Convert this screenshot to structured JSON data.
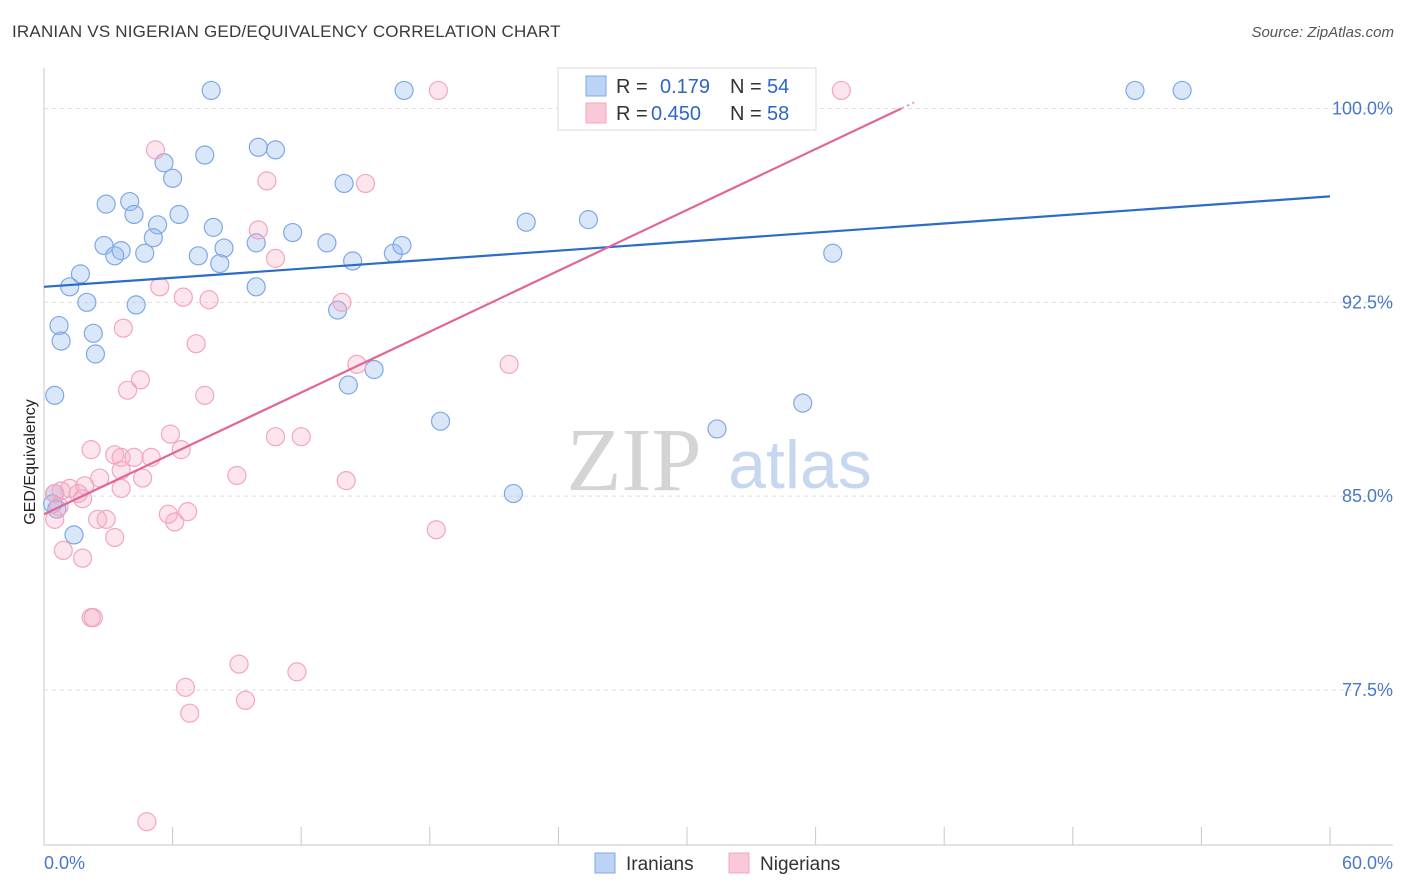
{
  "header": {
    "title": "IRANIAN VS NIGERIAN GED/EQUIVALENCY CORRELATION CHART",
    "source": "Source: ZipAtlas.com"
  },
  "watermark": {
    "zip": "ZIP",
    "atlas": "atlas"
  },
  "chart_data": {
    "type": "scatter",
    "ylabel": "GED/Equivalency",
    "xlim": [
      0,
      60
    ],
    "ylim": [
      71.5,
      101.8
    ],
    "x_tick_labels": [
      "0.0%",
      "60.0%"
    ],
    "y_ticks": [
      {
        "value": 100.0,
        "label": "100.0%"
      },
      {
        "value": 92.5,
        "label": "92.5%"
      },
      {
        "value": 85.0,
        "label": "85.0%"
      },
      {
        "value": 77.5,
        "label": "77.5%"
      }
    ],
    "grid": true,
    "legend_position": "top-center",
    "series": [
      {
        "name": "Iranians",
        "color": "#7fa8e6",
        "line_color": "#2b6cc7",
        "R": "0.179",
        "N": "54",
        "r_label": "R =",
        "n_label": "N =",
        "trend": [
          [
            0,
            93.1
          ],
          [
            60,
            96.6
          ]
        ],
        "points": [
          [
            7.8,
            100.7
          ],
          [
            16.8,
            100.7
          ],
          [
            50.9,
            100.7
          ],
          [
            53.1,
            100.7
          ],
          [
            10,
            98.5
          ],
          [
            10.8,
            98.4
          ],
          [
            7.5,
            98.2
          ],
          [
            5.6,
            97.9
          ],
          [
            6,
            97.3
          ],
          [
            14,
            97.1
          ],
          [
            4,
            96.4
          ],
          [
            2.9,
            96.3
          ],
          [
            4.2,
            95.9
          ],
          [
            6.3,
            95.9
          ],
          [
            5.3,
            95.5
          ],
          [
            11.6,
            95.2
          ],
          [
            7.9,
            95.4
          ],
          [
            22.5,
            95.6
          ],
          [
            25.4,
            95.7
          ],
          [
            5.1,
            95
          ],
          [
            9.9,
            94.8
          ],
          [
            8.4,
            94.6
          ],
          [
            13.2,
            94.8
          ],
          [
            7.2,
            94.3
          ],
          [
            3.6,
            94.5
          ],
          [
            14.4,
            94.1
          ],
          [
            16.3,
            94.4
          ],
          [
            16.7,
            94.7
          ],
          [
            2.8,
            94.7
          ],
          [
            3.3,
            94.3
          ],
          [
            4.7,
            94.4
          ],
          [
            8.2,
            94
          ],
          [
            1.7,
            93.6
          ],
          [
            9.9,
            93.1
          ],
          [
            1.2,
            93.1
          ],
          [
            2,
            92.5
          ],
          [
            4.3,
            92.4
          ],
          [
            13.7,
            92.2
          ],
          [
            2.3,
            91.3
          ],
          [
            0.7,
            91.6
          ],
          [
            0.8,
            91
          ],
          [
            2.4,
            90.5
          ],
          [
            15.4,
            89.9
          ],
          [
            14.2,
            89.3
          ],
          [
            0.5,
            88.9
          ],
          [
            18.5,
            87.9
          ],
          [
            31.4,
            87.6
          ],
          [
            35.4,
            88.6
          ],
          [
            36.8,
            94.4
          ],
          [
            21.9,
            85.1
          ],
          [
            1.4,
            83.5
          ],
          [
            0.5,
            85.1
          ],
          [
            0.4,
            84.7
          ],
          [
            0.6,
            84.5
          ]
        ]
      },
      {
        "name": "Nigerians",
        "color": "#f2a6bf",
        "line_color": "#e0669a",
        "R": "0.450",
        "N": "58",
        "r_label": "R =",
        "n_label": "N =",
        "trend": [
          [
            0,
            84.3
          ],
          [
            40,
            100
          ]
        ],
        "points": [
          [
            18.4,
            100.7
          ],
          [
            37.2,
            100.7
          ],
          [
            5.2,
            98.4
          ],
          [
            10.4,
            97.2
          ],
          [
            15,
            97.1
          ],
          [
            10,
            95.3
          ],
          [
            10.8,
            94.2
          ],
          [
            5.4,
            93.1
          ],
          [
            6.5,
            92.7
          ],
          [
            7.7,
            92.6
          ],
          [
            13.9,
            92.5
          ],
          [
            3.7,
            91.5
          ],
          [
            7.1,
            90.9
          ],
          [
            14.6,
            90.1
          ],
          [
            21.7,
            90.1
          ],
          [
            4.5,
            89.5
          ],
          [
            3.9,
            89.1
          ],
          [
            7.5,
            88.9
          ],
          [
            5.9,
            87.4
          ],
          [
            10.8,
            87.3
          ],
          [
            12,
            87.3
          ],
          [
            2.2,
            86.8
          ],
          [
            6.4,
            86.8
          ],
          [
            3.3,
            86.6
          ],
          [
            3.6,
            86.5
          ],
          [
            4.2,
            86.5
          ],
          [
            5,
            86.5
          ],
          [
            3.6,
            86.0
          ],
          [
            4.6,
            85.7
          ],
          [
            9,
            85.8
          ],
          [
            2.6,
            85.7
          ],
          [
            1.9,
            85.4
          ],
          [
            3.6,
            85.3
          ],
          [
            14.1,
            85.6
          ],
          [
            1.2,
            85.3
          ],
          [
            0.8,
            85.2
          ],
          [
            1.6,
            85.1
          ],
          [
            0.5,
            85.1
          ],
          [
            1.8,
            84.9
          ],
          [
            0.7,
            84.6
          ],
          [
            0.5,
            84.1
          ],
          [
            6.7,
            84.4
          ],
          [
            5.8,
            84.3
          ],
          [
            6.1,
            84.0
          ],
          [
            2.5,
            84.1
          ],
          [
            2.9,
            84.1
          ],
          [
            18.3,
            83.7
          ],
          [
            3.3,
            83.4
          ],
          [
            0.9,
            82.9
          ],
          [
            1.8,
            82.6
          ],
          [
            2.2,
            80.3
          ],
          [
            2.3,
            80.3
          ],
          [
            9.1,
            78.5
          ],
          [
            11.8,
            78.2
          ],
          [
            6.6,
            77.6
          ],
          [
            9.4,
            77.1
          ],
          [
            6.8,
            76.6
          ],
          [
            4.8,
            72.4
          ]
        ]
      }
    ]
  }
}
